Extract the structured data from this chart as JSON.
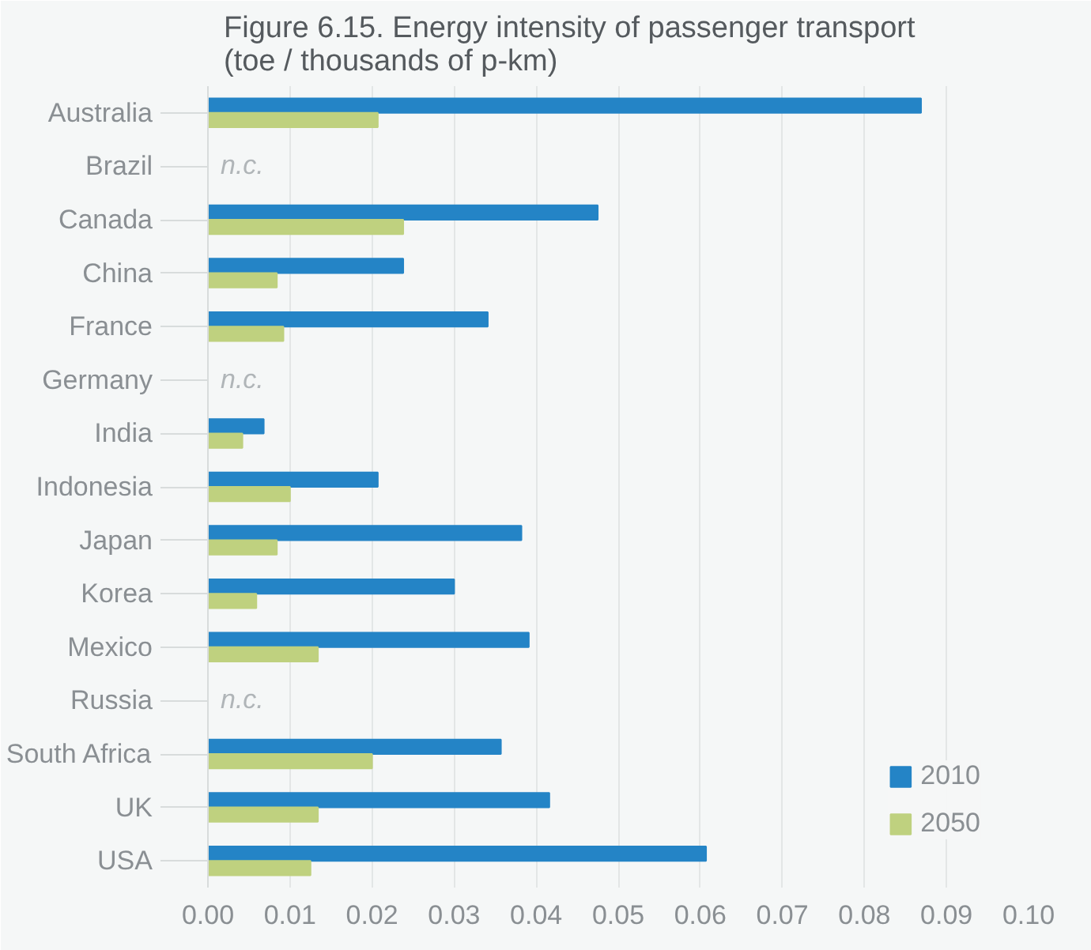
{
  "chart_data": {
    "type": "bar",
    "orientation": "horizontal",
    "title": "Figure 6.15. Energy intensity of passenger transport\n(toe / thousands of p-km)",
    "categories": [
      "Australia",
      "Brazil",
      "Canada",
      "China",
      "France",
      "Germany",
      "India",
      "Indonesia",
      "Japan",
      "Korea",
      "Mexico",
      "Russia",
      "South Africa",
      "UK",
      "USA"
    ],
    "series": [
      {
        "name": "2010",
        "color": "#2484c6",
        "values": [
          0.0869,
          null,
          0.0475,
          0.0238,
          0.0341,
          null,
          0.0068,
          0.0207,
          0.0382,
          0.03,
          0.0391,
          null,
          0.0357,
          0.0416,
          0.0607
        ]
      },
      {
        "name": "2050",
        "color": "#bfd17f",
        "values": [
          0.0207,
          null,
          0.0238,
          0.0084,
          0.0092,
          null,
          0.0042,
          0.01,
          0.0084,
          0.0059,
          0.0134,
          null,
          0.02,
          0.0134,
          0.0125
        ]
      }
    ],
    "annotations": [
      "n.c.",
      "n.c.",
      "n.c."
    ],
    "xlim": [
      0,
      0.1
    ],
    "xticks": [
      {
        "value": 0,
        "label": "0.00"
      },
      0.01,
      0.02,
      0.03,
      0.04,
      0.05,
      0.06,
      0.07,
      0.08,
      0.09,
      {
        "value": 0.1,
        "label": "0.10"
      }
    ],
    "grid": "x",
    "legend": "bottom right"
  }
}
